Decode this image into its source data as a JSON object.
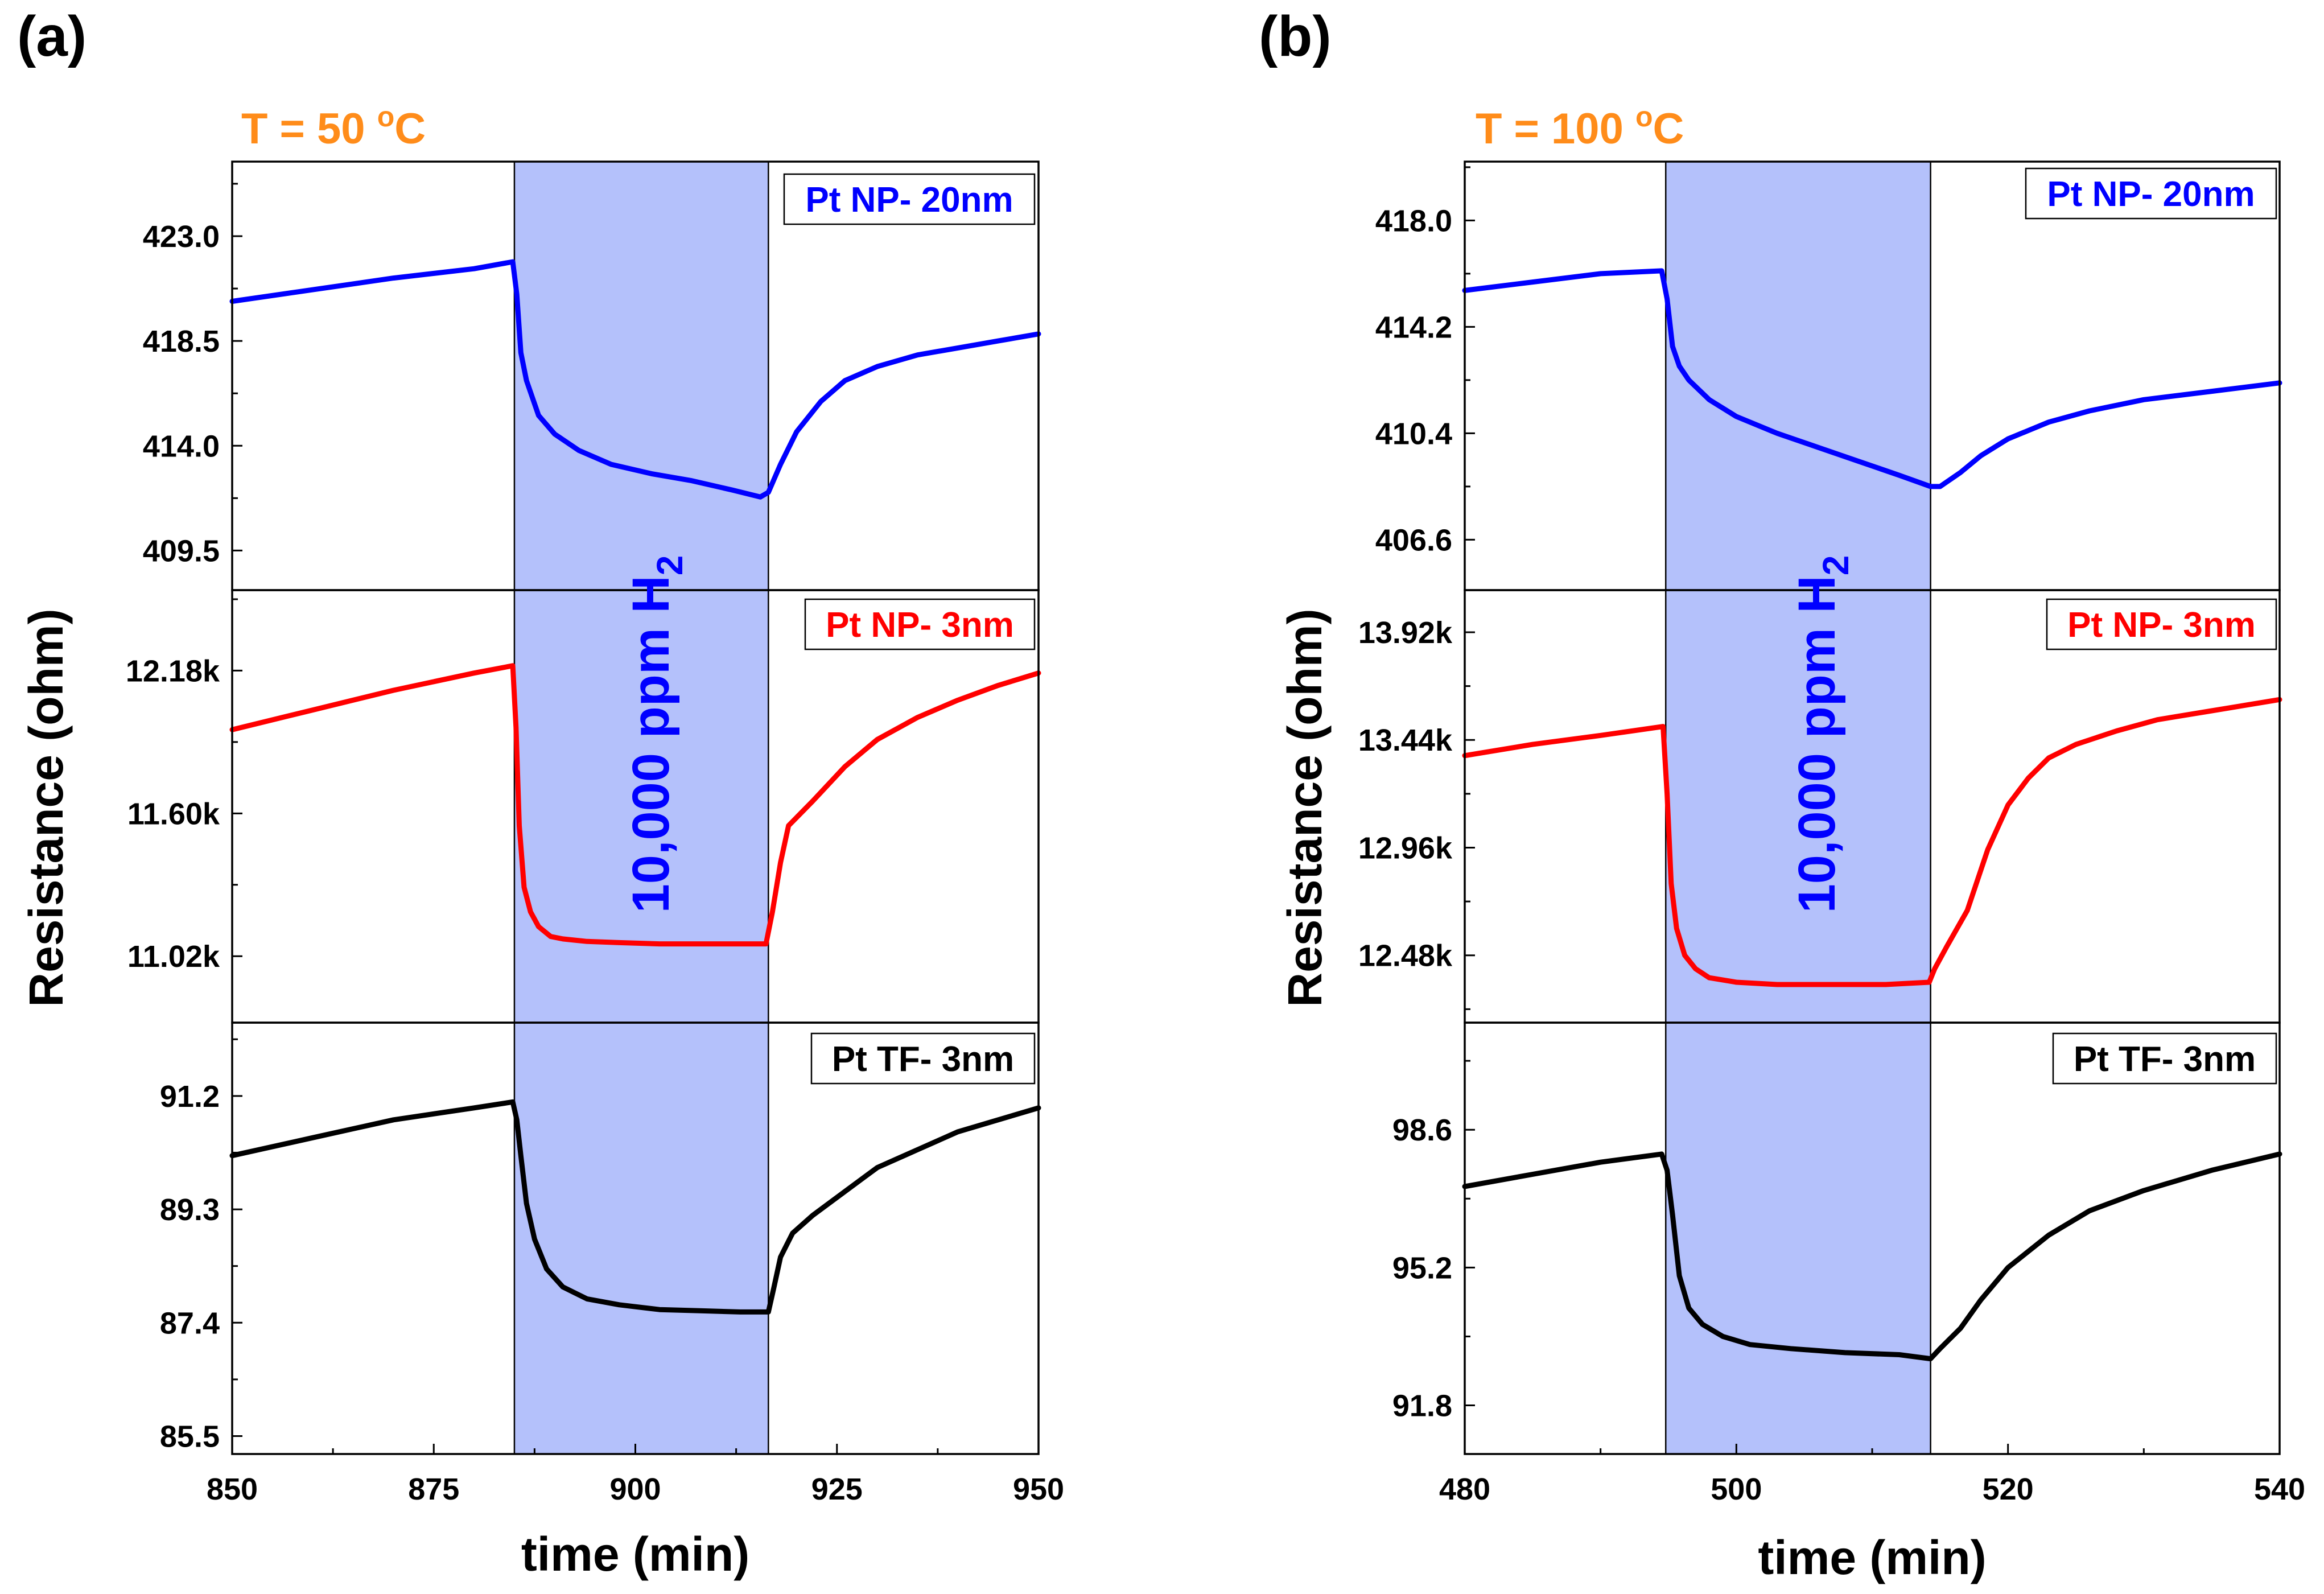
{
  "chart_data": [
    {
      "type": "line",
      "panel_label": "(a)",
      "temperature_label": {
        "prefix": "T = 50 ",
        "sup": "o",
        "unit": "C"
      },
      "gas_label": {
        "main": "10,000 ppm H",
        "sub": "2"
      },
      "xlabel": "time (min)",
      "ylabel": "Resistance (ohm)",
      "xlim": [
        850,
        950
      ],
      "x_ticks": [
        850,
        875,
        900,
        925,
        950
      ],
      "x_tick_labels": [
        "850",
        "875",
        "900",
        "925",
        "950"
      ],
      "exposure_window": [
        885,
        916.5
      ],
      "subplots": [
        {
          "series_name": "Pt NP- 20nm",
          "color": "#0000ff",
          "ylim": [
            407.8,
            426.2
          ],
          "y_ticks": [
            409.5,
            414.0,
            418.5,
            423.0
          ],
          "y_tick_labels": [
            "409.5",
            "414.0",
            "418.5",
            "423.0"
          ],
          "x": [
            850,
            860,
            870,
            880,
            884.8,
            885.3,
            885.8,
            886.5,
            888,
            890,
            893,
            897,
            902,
            907,
            912,
            915.5,
            916.5,
            918,
            920,
            923,
            926,
            930,
            935,
            940,
            945,
            950
          ],
          "y": [
            420.2,
            420.7,
            421.2,
            421.6,
            421.9,
            420.5,
            418.0,
            416.8,
            415.3,
            414.5,
            413.8,
            413.2,
            412.8,
            412.5,
            412.1,
            411.8,
            412.0,
            413.2,
            414.6,
            415.9,
            416.8,
            417.4,
            417.9,
            418.2,
            418.5,
            418.8
          ]
        },
        {
          "series_name": "Pt NP- 3nm",
          "color": "#ff0000",
          "ylim": [
            10.75,
            12.5
          ],
          "y_ticks": [
            11.02,
            11.6,
            12.18
          ],
          "y_tick_labels": [
            "11.02k",
            "11.60k",
            "12.18k"
          ],
          "x": [
            850,
            860,
            870,
            880,
            884.8,
            885.2,
            885.6,
            886.2,
            887,
            888,
            889.5,
            891,
            894,
            898,
            903,
            908,
            913,
            916.2,
            917,
            918,
            919,
            922,
            926,
            930,
            935,
            940,
            945,
            950
          ],
          "y": [
            11.94,
            12.02,
            12.1,
            12.17,
            12.2,
            11.95,
            11.55,
            11.3,
            11.2,
            11.14,
            11.1,
            11.09,
            11.08,
            11.075,
            11.07,
            11.07,
            11.07,
            11.07,
            11.2,
            11.4,
            11.55,
            11.65,
            11.79,
            11.9,
            11.99,
            12.06,
            12.12,
            12.17
          ]
        },
        {
          "series_name": "Pt TF- 3nm",
          "color": "#000000",
          "ylim": [
            85.2,
            92.4
          ],
          "y_ticks": [
            85.5,
            87.4,
            89.3,
            91.2
          ],
          "y_tick_labels": [
            "85.5",
            "87.4",
            "89.3",
            "91.2"
          ],
          "x": [
            850,
            860,
            870,
            880,
            884.8,
            885.3,
            885.8,
            886.5,
            887.5,
            889,
            891,
            894,
            898,
            903,
            908,
            913,
            916.5,
            917.2,
            918,
            919.5,
            922,
            926,
            930,
            935,
            940,
            945,
            950
          ],
          "y": [
            90.2,
            90.5,
            90.8,
            91.0,
            91.1,
            90.8,
            90.2,
            89.4,
            88.8,
            88.3,
            88.0,
            87.8,
            87.7,
            87.62,
            87.6,
            87.58,
            87.58,
            88.0,
            88.5,
            88.9,
            89.2,
            89.6,
            90.0,
            90.3,
            90.6,
            90.8,
            91.0
          ]
        }
      ]
    },
    {
      "type": "line",
      "panel_label": "(b)",
      "temperature_label": {
        "prefix": "T = 100 ",
        "sup": "o",
        "unit": "C"
      },
      "gas_label": {
        "main": "10,000 ppm H",
        "sub": "2"
      },
      "xlabel": "time (min)",
      "ylabel": "Resistance (ohm)",
      "xlim": [
        480,
        540
      ],
      "x_ticks": [
        480,
        500,
        520,
        540
      ],
      "x_tick_labels": [
        "480",
        "500",
        "520",
        "540"
      ],
      "exposure_window": [
        494.8,
        514.3
      ],
      "subplots": [
        {
          "series_name": "Pt NP- 20nm",
          "color": "#0000ff",
          "ylim": [
            404.8,
            420.1
          ],
          "y_ticks": [
            406.6,
            410.4,
            414.2,
            418.0
          ],
          "y_tick_labels": [
            "406.6",
            "410.4",
            "414.2",
            "418.0"
          ],
          "x": [
            480,
            485,
            490,
            494.5,
            494.9,
            495.3,
            495.8,
            496.5,
            498,
            500,
            503,
            506,
            509,
            512,
            514.3,
            515,
            516.5,
            518,
            520,
            523,
            526,
            530,
            535,
            540
          ],
          "y": [
            415.5,
            415.8,
            416.1,
            416.2,
            415.2,
            413.5,
            412.8,
            412.3,
            411.6,
            411.0,
            410.4,
            409.9,
            409.4,
            408.9,
            408.5,
            408.5,
            409.0,
            409.6,
            410.2,
            410.8,
            411.2,
            411.6,
            411.9,
            412.2
          ]
        },
        {
          "series_name": "Pt NP- 3nm",
          "color": "#ff0000",
          "ylim": [
            12.18,
            14.1
          ],
          "y_ticks": [
            12.48,
            12.96,
            13.44,
            13.92
          ],
          "y_tick_labels": [
            "12.48k",
            "12.96k",
            "13.44k",
            "13.92k"
          ],
          "x": [
            480,
            485,
            490,
            494.6,
            494.9,
            495.2,
            495.6,
            496.2,
            497,
            498,
            500,
            503,
            507,
            511,
            514.2,
            514.6,
            515.5,
            517,
            518.5,
            520,
            521.5,
            523,
            525,
            528,
            531,
            535,
            540
          ],
          "y": [
            13.37,
            13.42,
            13.46,
            13.5,
            13.2,
            12.8,
            12.6,
            12.48,
            12.42,
            12.38,
            12.36,
            12.35,
            12.35,
            12.35,
            12.36,
            12.42,
            12.52,
            12.68,
            12.95,
            13.15,
            13.27,
            13.36,
            13.42,
            13.48,
            13.53,
            13.57,
            13.62
          ]
        },
        {
          "series_name": "Pt TF- 3nm",
          "color": "#000000",
          "ylim": [
            90.6,
            101.2
          ],
          "y_ticks": [
            91.8,
            95.2,
            98.6
          ],
          "y_tick_labels": [
            "91.8",
            "95.2",
            "98.6"
          ],
          "x": [
            480,
            485,
            490,
            494.5,
            494.9,
            495.3,
            495.8,
            496.5,
            497.5,
            499,
            501,
            504,
            508,
            512,
            514.3,
            515,
            516.5,
            518,
            520,
            523,
            526,
            530,
            535,
            540
          ],
          "y": [
            97.2,
            97.5,
            97.8,
            98.0,
            97.6,
            96.5,
            95.0,
            94.2,
            93.8,
            93.5,
            93.3,
            93.2,
            93.1,
            93.05,
            92.95,
            93.2,
            93.7,
            94.4,
            95.2,
            96.0,
            96.6,
            97.1,
            97.6,
            98.0
          ]
        }
      ]
    }
  ]
}
